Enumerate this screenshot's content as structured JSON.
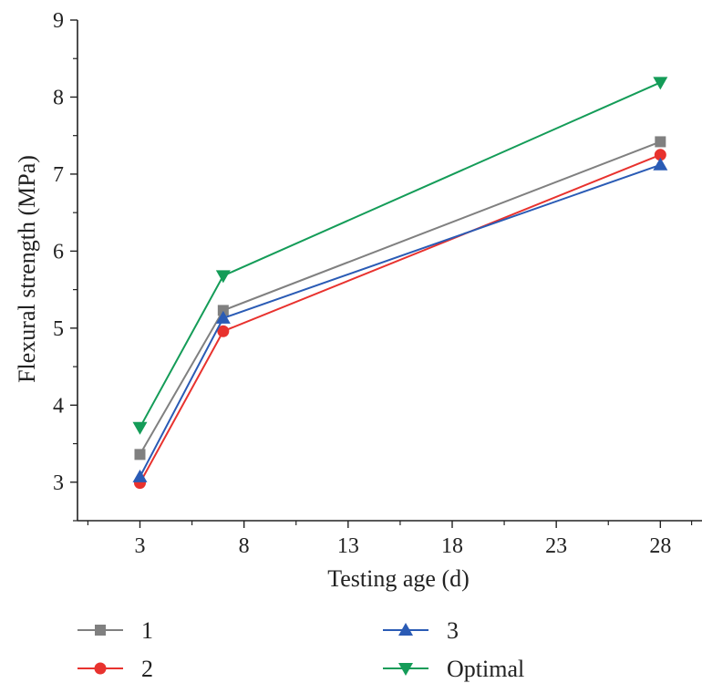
{
  "chart_data": {
    "type": "line",
    "xlabel": "Testing age (d)",
    "ylabel": "Flexural strength (MPa)",
    "xlim": [
      0,
      30
    ],
    "ylim": [
      2.5,
      9
    ],
    "x_ticks": [
      3,
      8,
      13,
      18,
      23,
      28
    ],
    "y_ticks": [
      3,
      4,
      5,
      6,
      7,
      8,
      9
    ],
    "x": [
      3,
      7,
      28
    ],
    "series": [
      {
        "name": "1",
        "values": [
          3.36,
          5.23,
          7.42
        ],
        "color": "#808080",
        "marker": "square"
      },
      {
        "name": "2",
        "values": [
          2.99,
          4.96,
          7.25
        ],
        "color": "#e8322e",
        "marker": "circle"
      },
      {
        "name": "3",
        "values": [
          3.07,
          5.13,
          7.12
        ],
        "color": "#2a5bb5",
        "marker": "triangle-up"
      },
      {
        "name": "Optimal",
        "values": [
          3.71,
          5.68,
          8.19
        ],
        "color": "#149c58",
        "marker": "triangle-down"
      }
    ],
    "grid": false,
    "legend_position": "bottom"
  }
}
